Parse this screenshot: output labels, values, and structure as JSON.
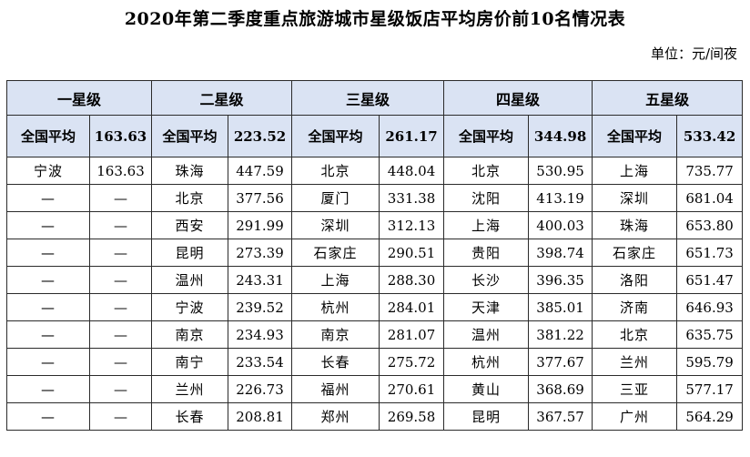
{
  "title": "2020年第二季度重点旅游城市星级饭店平均房价前10名情况表",
  "unit": "单位：元/间夜",
  "levels": [
    "一星级",
    "二星级",
    "三星级",
    "四星级",
    "五星级"
  ],
  "national_avg_label": "全国平均",
  "national_avg": [
    "163.63",
    "223.52",
    "261.17",
    "344.98",
    "533.42"
  ],
  "rows": [
    [
      [
        "宁波",
        "163.63"
      ],
      [
        "珠海",
        "447.59"
      ],
      [
        "北京",
        "448.04"
      ],
      [
        "北京",
        "530.95"
      ],
      [
        "上海",
        "735.77"
      ]
    ],
    [
      [
        "—",
        "—"
      ],
      [
        "北京",
        "377.56"
      ],
      [
        "厦门",
        "331.38"
      ],
      [
        "沈阳",
        "413.19"
      ],
      [
        "深圳",
        "681.04"
      ]
    ],
    [
      [
        "—",
        "—"
      ],
      [
        "西安",
        "291.99"
      ],
      [
        "深圳",
        "312.13"
      ],
      [
        "上海",
        "400.03"
      ],
      [
        "珠海",
        "653.80"
      ]
    ],
    [
      [
        "—",
        "—"
      ],
      [
        "昆明",
        "273.39"
      ],
      [
        "石家庄",
        "290.51"
      ],
      [
        "贵阳",
        "398.74"
      ],
      [
        "石家庄",
        "651.73"
      ]
    ],
    [
      [
        "—",
        "—"
      ],
      [
        "温州",
        "243.31"
      ],
      [
        "上海",
        "288.30"
      ],
      [
        "长沙",
        "396.35"
      ],
      [
        "洛阳",
        "651.47"
      ]
    ],
    [
      [
        "—",
        "—"
      ],
      [
        "宁波",
        "239.52"
      ],
      [
        "杭州",
        "284.01"
      ],
      [
        "天津",
        "385.01"
      ],
      [
        "济南",
        "646.93"
      ]
    ],
    [
      [
        "—",
        "—"
      ],
      [
        "南京",
        "234.93"
      ],
      [
        "南京",
        "281.07"
      ],
      [
        "温州",
        "381.22"
      ],
      [
        "北京",
        "635.75"
      ]
    ],
    [
      [
        "—",
        "—"
      ],
      [
        "南宁",
        "233.54"
      ],
      [
        "长春",
        "275.72"
      ],
      [
        "杭州",
        "377.67"
      ],
      [
        "兰州",
        "595.79"
      ]
    ],
    [
      [
        "—",
        "—"
      ],
      [
        "兰州",
        "226.73"
      ],
      [
        "福州",
        "270.61"
      ],
      [
        "黄山",
        "368.69"
      ],
      [
        "三亚",
        "577.17"
      ]
    ],
    [
      [
        "—",
        "—"
      ],
      [
        "长春",
        "208.81"
      ],
      [
        "郑州",
        "269.58"
      ],
      [
        "昆明",
        "367.57"
      ],
      [
        "广州",
        "564.29"
      ]
    ]
  ],
  "colors": {
    "header_bg": "#dae3f3",
    "border": "#2b2b2b"
  }
}
